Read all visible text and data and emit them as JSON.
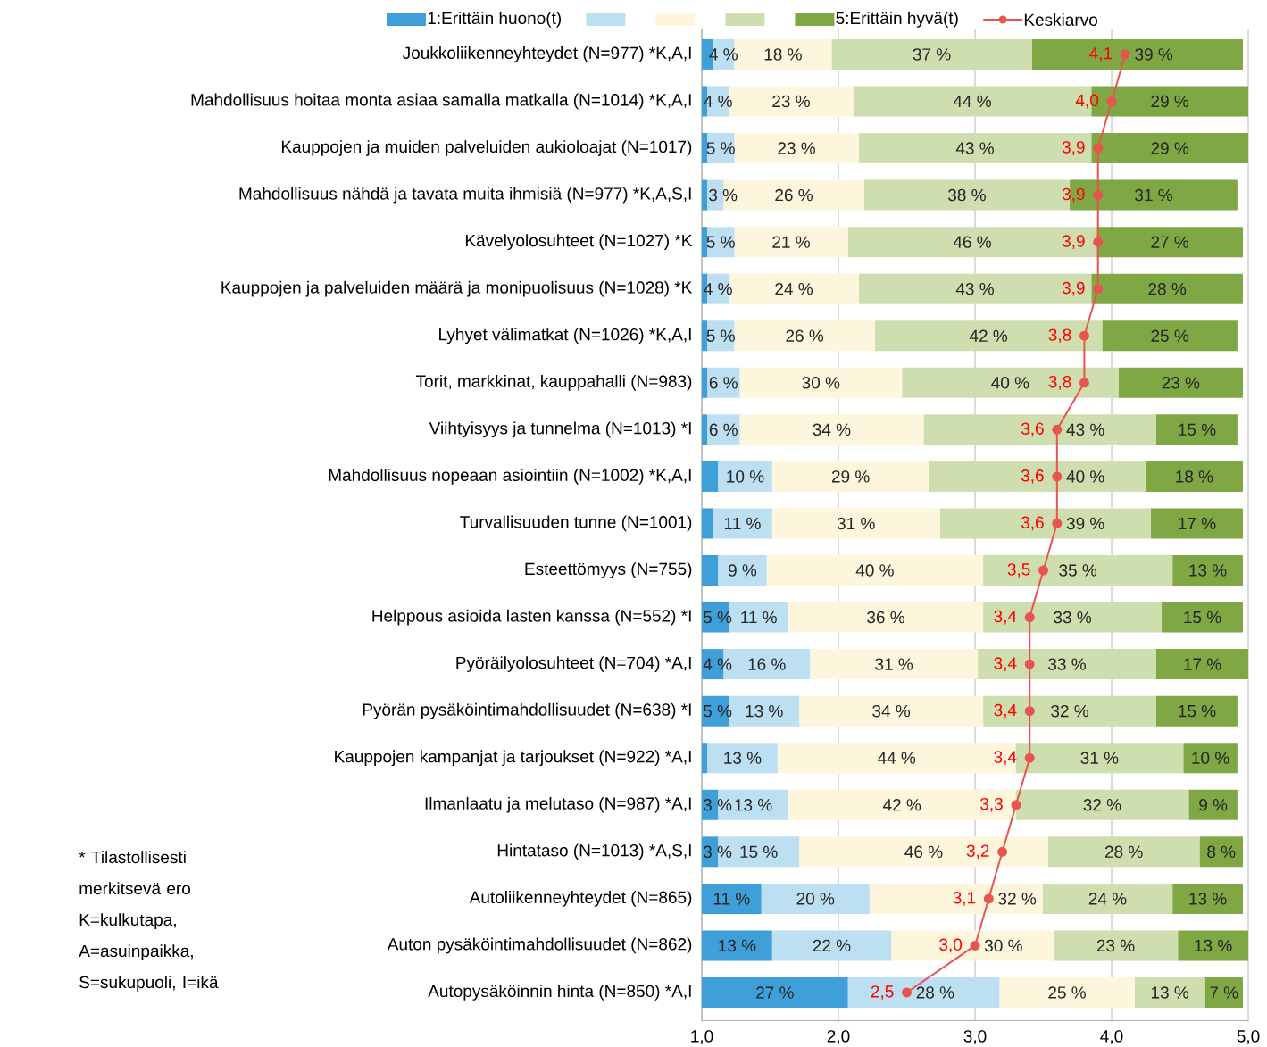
{
  "chart_data": {
    "type": "bar",
    "orientation": "horizontal",
    "stacked": true,
    "grid": "x",
    "legend": "top",
    "marker": "circle",
    "categories": [
      "Joukkoliikenneyhteydet (N=977) *K,A,I",
      "Mahdollisuus hoitaa monta asiaa samalla matkalla (N=1014) *K,A,I",
      "Kauppojen ja muiden palveluiden aukioloajat (N=1017)",
      "Mahdollisuus nähdä ja tavata muita ihmisiä (N=977) *K,A,S,I",
      "Kävelyolosuhteet (N=1027) *K",
      "Kauppojen ja palveluiden määrä ja monipuolisuus (N=1028) *K",
      "Lyhyet välimatkat (N=1026) *K,A,I",
      "Torit, markkinat, kauppahalli (N=983)",
      "Viihtyisyys ja tunnelma (N=1013) *I",
      "Mahdollisuus nopeaan asiointiin (N=1002) *K,A,I",
      "Turvallisuuden tunne (N=1001)",
      "Esteettömyys (N=755)",
      "Helppous asioida lasten kanssa (N=552) *I",
      "Pyöräilyolosuhteet (N=704) *A,I",
      "Pyörän pysäköintimahdollisuudet (N=638) *I",
      "Kauppojen kampanjat ja tarjoukset (N=922) *A,I",
      "Ilmanlaatu ja melutaso (N=987) *A,I",
      "Hintataso (N=1013) *A,S,I",
      "Autoliikenneyhteydet (N=865)",
      "Auton pysäköintimahdollisuudet (N=862)",
      "Autopysäköinnin hinta (N=850) *A,I"
    ],
    "x2lim": [
      1,
      5
    ],
    "x2ticks": [
      {
        "value": 1,
        "label": "1,0"
      },
      {
        "value": 2,
        "label": "2,0"
      },
      {
        "value": 3,
        "label": "3,0"
      },
      {
        "value": 4,
        "label": "4,0"
      },
      {
        "value": 5,
        "label": "5,0"
      }
    ],
    "xlim": [
      0,
      101
    ],
    "series": [
      {
        "name": "1:Erittäin huono(t)",
        "color": "#3f9fd8",
        "values": [
          2,
          1,
          1,
          1,
          1,
          1,
          1,
          1,
          1,
          3,
          2,
          3,
          5,
          4,
          5,
          1,
          3,
          3,
          11,
          13,
          27
        ],
        "value_labels": [
          null,
          null,
          null,
          null,
          null,
          null,
          null,
          null,
          null,
          null,
          null,
          null,
          "5 %",
          "4 %",
          "5 %",
          null,
          "3 %",
          "3 %",
          "11 %",
          "13 %",
          "27 %"
        ]
      },
      {
        "color": "#bddff2",
        "values": [
          4,
          4,
          5,
          3,
          5,
          4,
          5,
          6,
          6,
          10,
          11,
          9,
          11,
          16,
          13,
          13,
          13,
          15,
          20,
          22,
          28
        ],
        "value_labels": [
          "4 %",
          "4 %",
          "5 %",
          "3 %",
          "5 %",
          "4 %",
          "5 %",
          "6 %",
          "6 %",
          "10 %",
          "11 %",
          "9 %",
          "11 %",
          "16 %",
          "13 %",
          "13 %",
          "13 %",
          "15 %",
          "20 %",
          "22 %",
          "28 %"
        ]
      },
      {
        "color": "#fdf5dc",
        "values": [
          18,
          23,
          23,
          26,
          21,
          24,
          26,
          30,
          34,
          29,
          31,
          40,
          36,
          31,
          34,
          44,
          42,
          46,
          32,
          30,
          25
        ],
        "value_labels": [
          "18 %",
          "23 %",
          "23 %",
          "26 %",
          "21 %",
          "24 %",
          "26 %",
          "30 %",
          "34 %",
          "29 %",
          "31 %",
          "40 %",
          "36 %",
          "31 %",
          "34 %",
          "44 %",
          "42 %",
          "46 %",
          "32 %",
          "30 %",
          "25 %"
        ]
      },
      {
        "color": "#cfdeae",
        "values": [
          37,
          44,
          43,
          38,
          46,
          43,
          42,
          40,
          43,
          40,
          39,
          35,
          33,
          33,
          32,
          31,
          32,
          28,
          24,
          23,
          13
        ],
        "value_labels": [
          "37 %",
          "44 %",
          "43 %",
          "38 %",
          "46 %",
          "43 %",
          "42 %",
          "40 %",
          "43 %",
          "40 %",
          "39 %",
          "35 %",
          "33 %",
          "33 %",
          "32 %",
          "31 %",
          "32 %",
          "28 %",
          "24 %",
          "23 %",
          "13 %"
        ]
      },
      {
        "name": "5:Erittäin hyvä(t)",
        "color": "#7fa744",
        "values": [
          39,
          29,
          29,
          31,
          27,
          28,
          25,
          23,
          15,
          18,
          17,
          13,
          15,
          17,
          15,
          10,
          9,
          8,
          13,
          13,
          7
        ],
        "value_labels": [
          "39 %",
          "29 %",
          "29 %",
          "31 %",
          "27 %",
          "28 %",
          "25 %",
          "23 %",
          "15 %",
          "18 %",
          "17 %",
          "13 %",
          "15 %",
          "17 %",
          "15 %",
          "10 %",
          "9 %",
          "8 %",
          "13 %",
          "13 %",
          "7 %"
        ]
      },
      {
        "name": "Keskiarvo",
        "type": "line",
        "axis": "x2",
        "color": "#e8544e",
        "values": [
          4.1,
          4.0,
          3.9,
          3.9,
          3.9,
          3.9,
          3.8,
          3.8,
          3.6,
          3.6,
          3.6,
          3.5,
          3.4,
          3.4,
          3.4,
          3.4,
          3.3,
          3.2,
          3.1,
          3.0,
          2.5
        ],
        "value_labels": [
          "4,1",
          "4,0",
          "3,9",
          "3,9",
          "3,9",
          "3,9",
          "3,8",
          "3,8",
          "3,6",
          "3,6",
          "3,6",
          "3,5",
          "3,4",
          "3,4",
          "3,4",
          "3,4",
          "3,3",
          "3,2",
          "3,1",
          "3,0",
          "2,5"
        ]
      }
    ],
    "annotations": [
      "* Tilastollisesti merkitsevä ero K=kulkutapa, A=asuinpaikka, S=sukupuoli, I=ikä"
    ]
  }
}
